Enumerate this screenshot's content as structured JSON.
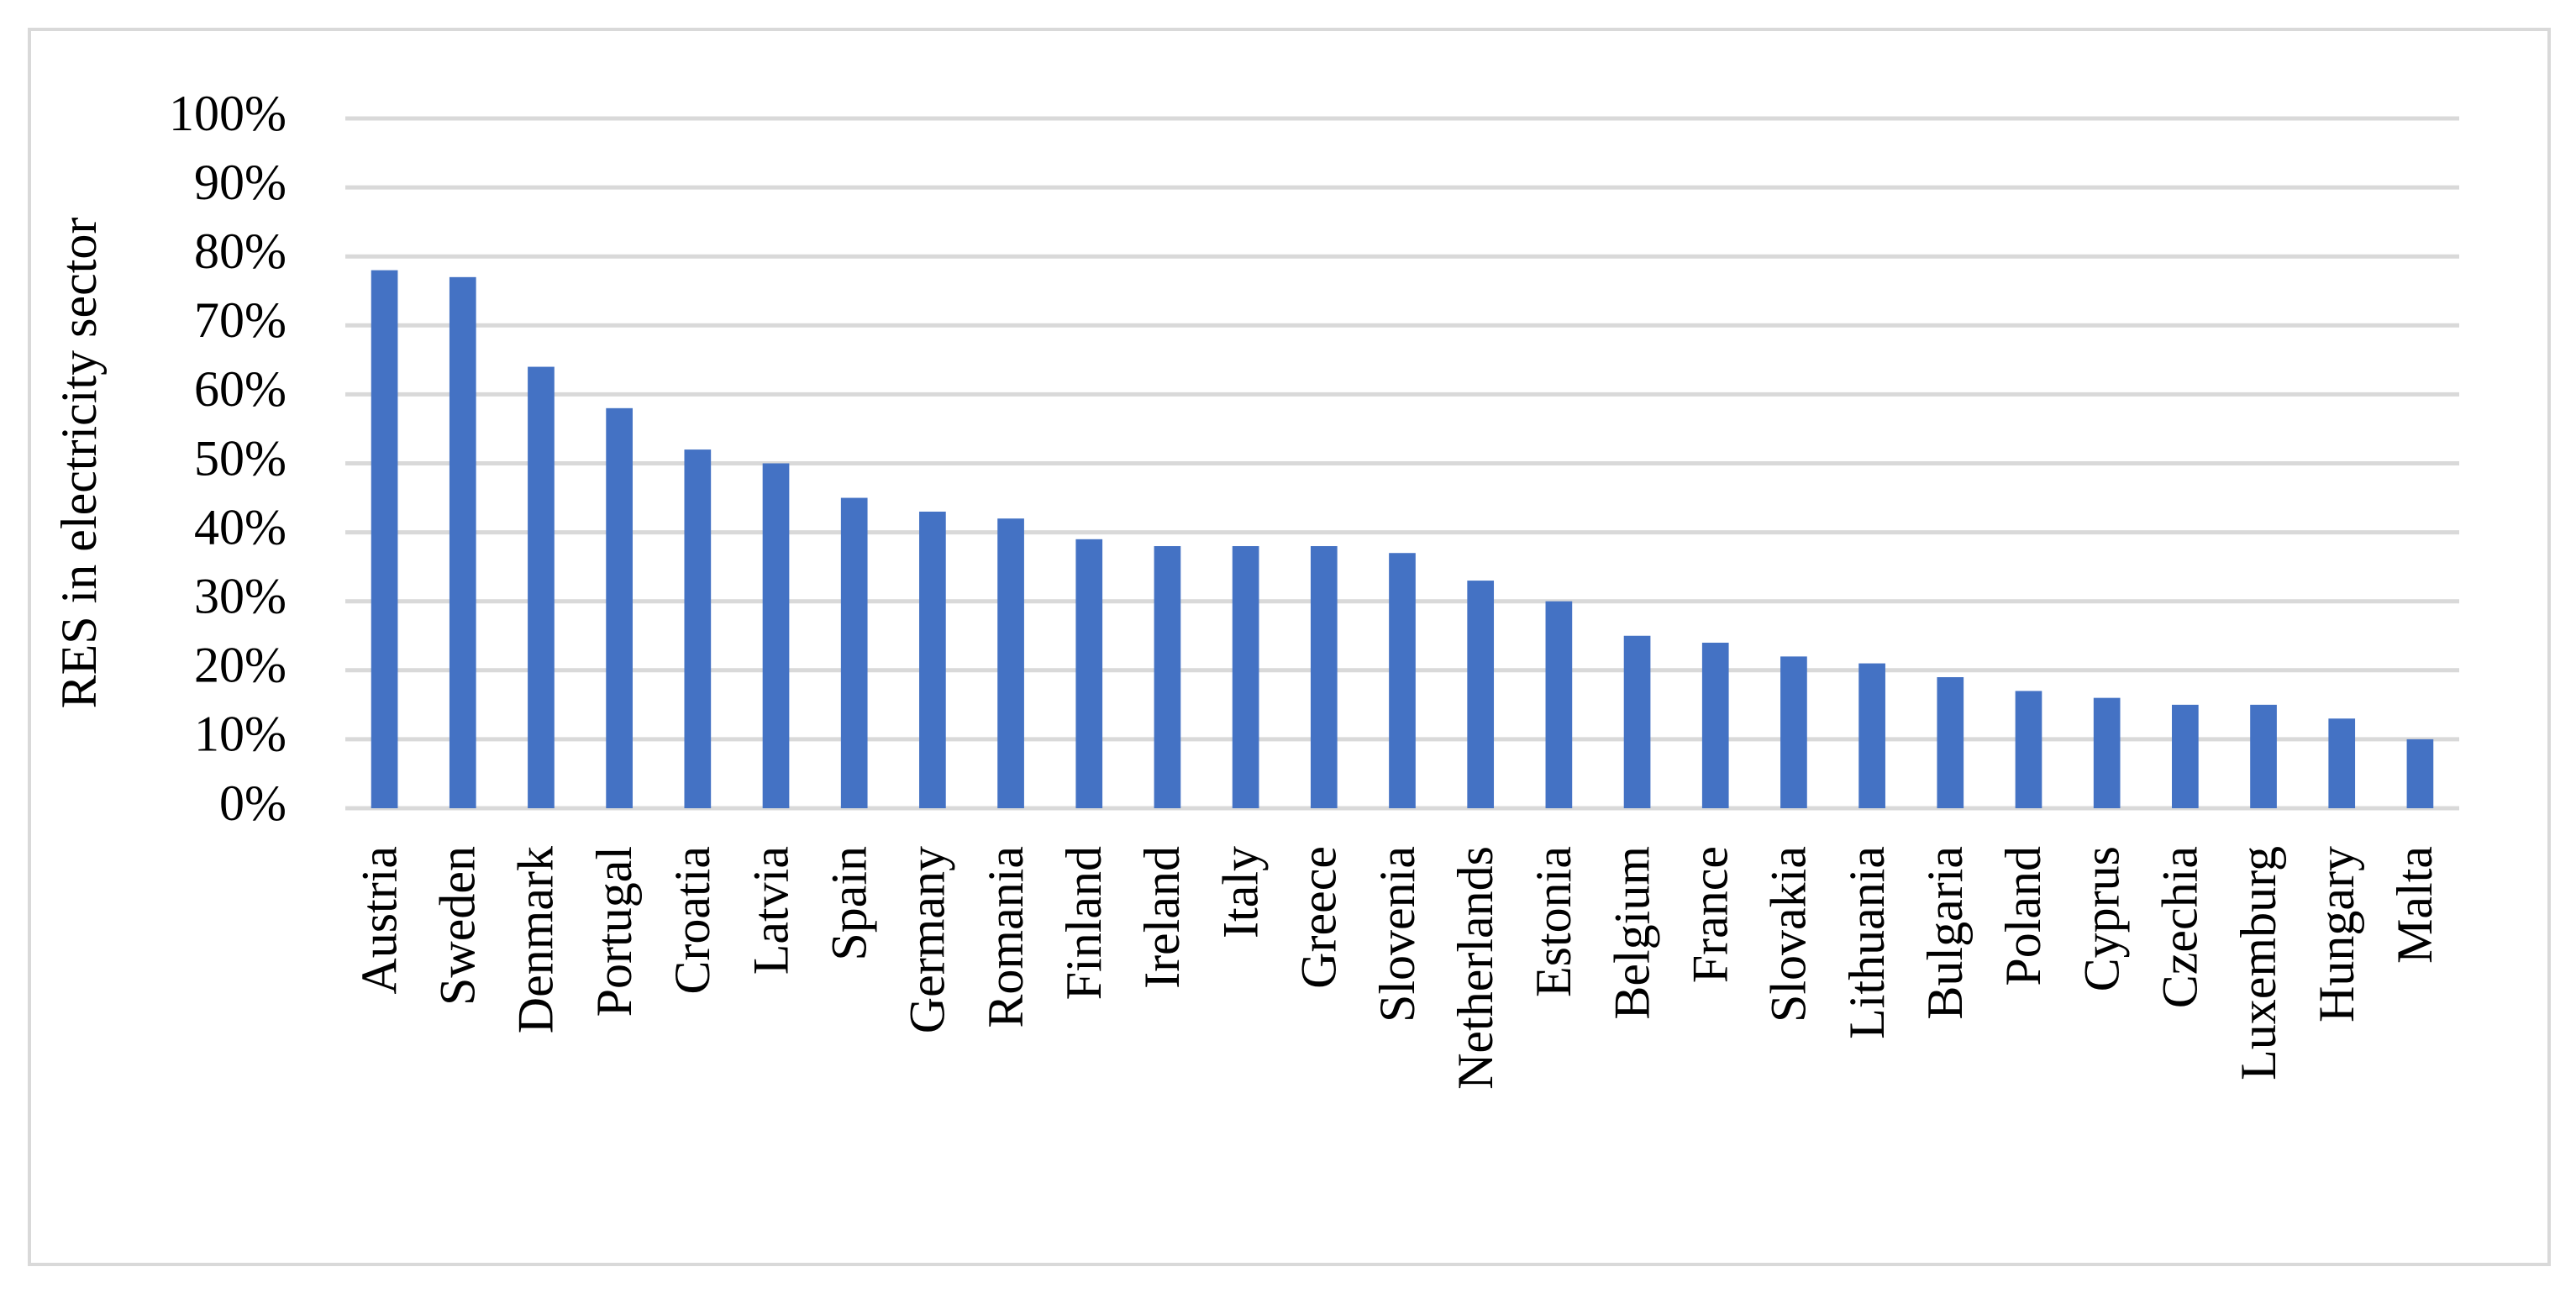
{
  "chart_data": {
    "type": "bar",
    "y_axis_label": "RES in electricity sector",
    "categories": [
      "Austria",
      "Sweden",
      "Denmark",
      "Portugal",
      "Croatia",
      "Latvia",
      "Spain",
      "Germany",
      "Romania",
      "Finland",
      "Ireland",
      "Italy",
      "Greece",
      "Slovenia",
      "Netherlands",
      "Estonia",
      "Belgium",
      "France",
      "Slovakia",
      "Lithuania",
      "Bulgaria",
      "Poland",
      "Cyprus",
      "Czechia",
      "Luxemburg",
      "Hungary",
      "Malta"
    ],
    "values": [
      78,
      77,
      64,
      58,
      52,
      50,
      45,
      43,
      42,
      39,
      38,
      38,
      38,
      37,
      33,
      30,
      25,
      24,
      22,
      21,
      19,
      17,
      16,
      15,
      15,
      13,
      10
    ],
    "color": "#4472c4",
    "ylim": [
      0,
      100
    ],
    "yticks": [
      {
        "value": 0,
        "label": "0%"
      },
      {
        "value": 10,
        "label": "10%"
      },
      {
        "value": 20,
        "label": "20%"
      },
      {
        "value": 30,
        "label": "30%"
      },
      {
        "value": 40,
        "label": "40%"
      },
      {
        "value": 50,
        "label": "50%"
      },
      {
        "value": 60,
        "label": "60%"
      },
      {
        "value": 70,
        "label": "70%"
      },
      {
        "value": 80,
        "label": "80%"
      },
      {
        "value": 90,
        "label": "90%"
      },
      {
        "value": 100,
        "label": "100%"
      }
    ],
    "grid": true
  }
}
